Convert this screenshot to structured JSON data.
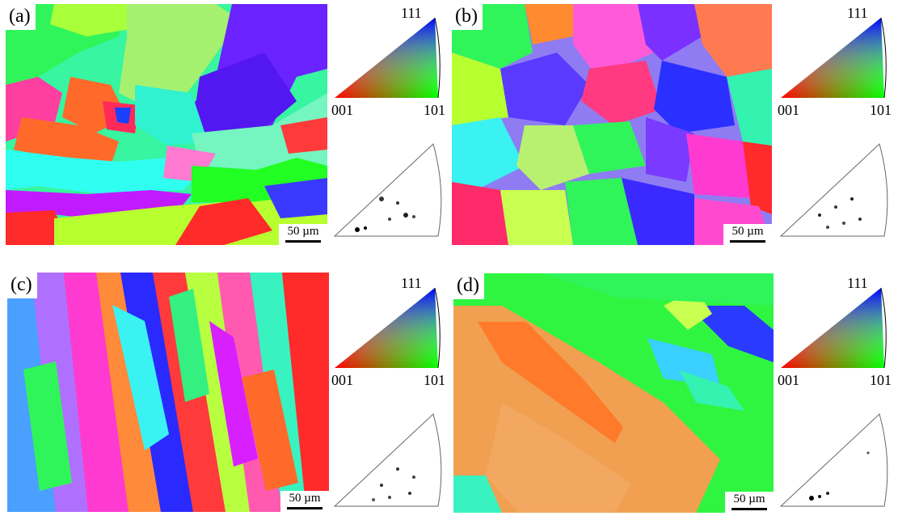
{
  "panels": [
    {
      "label": "(a)",
      "scale": "50 µm"
    },
    {
      "label": "(b)",
      "scale": "50 µm"
    },
    {
      "label": "(c)",
      "scale": "50 µm"
    },
    {
      "label": "(d)",
      "scale": "50 µm"
    }
  ],
  "ipf_key": {
    "top": "111",
    "left": "001",
    "right": "101"
  },
  "colors": {
    "red_001": "#ff1a1a",
    "green_101": "#22ff22",
    "blue_111": "#2a20ff",
    "magenta": "#d820ff",
    "orange": "#ff7a2a",
    "cyan": "#3effd0"
  }
}
